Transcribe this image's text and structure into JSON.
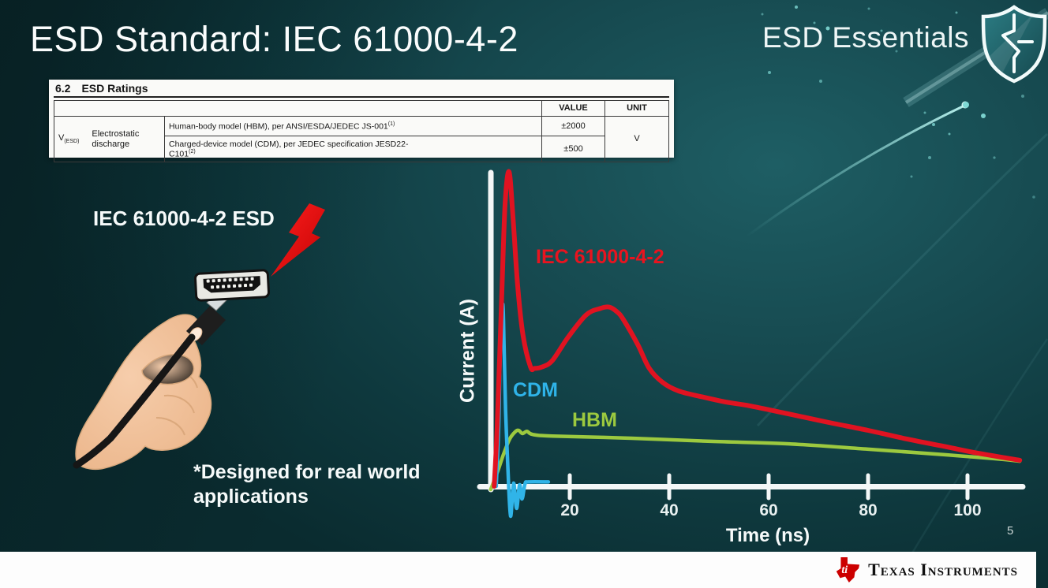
{
  "slide": {
    "title": "ESD Standard: IEC 61000-4-2",
    "brand": "ESD Essentials",
    "page_number": "5",
    "illustration_label": "IEC 61000-4-2 ESD",
    "footnote": "*Designed for real world\napplications"
  },
  "ratings_table": {
    "section": "6.2",
    "heading": "ESD Ratings",
    "col_value": "VALUE",
    "col_unit": "UNIT",
    "param_symbol": "V",
    "param_symbol_sub": "(ESD)",
    "param_name": "Electrostatic discharge",
    "rows": [
      {
        "description": "Human-body model (HBM), per ANSI/ESDA/JEDEC JS-001",
        "sup": "(1)",
        "value": "±2000"
      },
      {
        "description": "Charged-device model (CDM), per JEDEC specification JESD22-",
        "description2": "C101",
        "sup": "(2)",
        "value": "±500"
      }
    ],
    "unit": "V"
  },
  "chart_data": {
    "type": "line",
    "xlabel": "Time (ns)",
    "ylabel": "Current (A)",
    "x_ticks": [
      20,
      40,
      60,
      80,
      100
    ],
    "x_range": [
      0,
      112
    ],
    "y_relative_range": [
      -10,
      105
    ],
    "grid": false,
    "legend": "inline-labels",
    "series": [
      {
        "name": "HBM",
        "color": "#9cc93f",
        "width": 4.5,
        "points": [
          [
            4.1,
            -1
          ],
          [
            5.4,
            4.3
          ],
          [
            6.7,
            10.3
          ],
          [
            7.9,
            15
          ],
          [
            9.0,
            17.3
          ],
          [
            9.7,
            17.8
          ],
          [
            10.5,
            16.8
          ],
          [
            11.4,
            17.5
          ],
          [
            12.5,
            16.5
          ],
          [
            16.5,
            16
          ],
          [
            32.4,
            15.3
          ],
          [
            48.3,
            14.3
          ],
          [
            64.1,
            13.5
          ],
          [
            80,
            11.8
          ],
          [
            95.9,
            10
          ],
          [
            105.4,
            8.8
          ],
          [
            110.5,
            8
          ]
        ]
      },
      {
        "name": "CDM",
        "color": "#30b4e8",
        "width": 4.5,
        "points": [
          [
            5.2,
            0
          ],
          [
            5.7,
            19
          ],
          [
            6.0,
            42
          ],
          [
            6.5,
            58
          ],
          [
            6.8,
            44
          ],
          [
            7.1,
            24
          ],
          [
            7.6,
            4
          ],
          [
            8.1,
            -9.5
          ],
          [
            8.7,
            1
          ],
          [
            9.3,
            -7
          ],
          [
            9.9,
            0.5
          ],
          [
            10.4,
            -4
          ],
          [
            11.0,
            0.8
          ],
          [
            11.7,
            1.4
          ],
          [
            15.7,
            1.4
          ]
        ]
      },
      {
        "name": "IEC 61000-4-2",
        "color": "#e01321",
        "width": 6,
        "points": [
          [
            4.8,
            0
          ],
          [
            5.4,
            19
          ],
          [
            6.3,
            60
          ],
          [
            7.0,
            90
          ],
          [
            7.8,
            100
          ],
          [
            8.6,
            85
          ],
          [
            9.5,
            64
          ],
          [
            10.6,
            48
          ],
          [
            12.1,
            38
          ],
          [
            12.9,
            37.5
          ],
          [
            14.5,
            38
          ],
          [
            16.5,
            40
          ],
          [
            19.7,
            47.5
          ],
          [
            23.3,
            54.5
          ],
          [
            26,
            56.5
          ],
          [
            27.9,
            57
          ],
          [
            29.5,
            55.5
          ],
          [
            30.8,
            53
          ],
          [
            33.7,
            45
          ],
          [
            36,
            37.5
          ],
          [
            38.7,
            33
          ],
          [
            41.9,
            30.3
          ],
          [
            46.2,
            28.6
          ],
          [
            51.4,
            26.8
          ],
          [
            56.2,
            25.6
          ],
          [
            63.8,
            23.1
          ],
          [
            72.1,
            20.3
          ],
          [
            80,
            17.8
          ],
          [
            87.9,
            15
          ],
          [
            95.9,
            12.5
          ],
          [
            102.2,
            10.5
          ],
          [
            110.5,
            8.3
          ]
        ]
      }
    ],
    "series_label_colors": {
      "iec": "#e8141f",
      "cdm": "#2fb3e8",
      "hbm": "#9cc93f"
    }
  },
  "background": {
    "stars": [
      [
        1009,
        9,
        2,
        0.8
      ],
      [
        1032,
        29,
        1.5,
        0.6
      ],
      [
        1049,
        36,
        2.5,
        0.9
      ],
      [
        975,
        92,
        2,
        0.7
      ],
      [
        966,
        18,
        1.5,
        0.5
      ],
      [
        1117,
        39,
        1.5,
        0.6
      ],
      [
        1040,
        103,
        2,
        0.6
      ],
      [
        1101,
        11,
        1.5,
        0.5
      ],
      [
        1224,
        133,
        4,
        1
      ],
      [
        1246,
        147,
        3,
        0.95
      ],
      [
        1183,
        158,
        2,
        0.8
      ],
      [
        1172,
        143,
        1.5,
        0.6
      ],
      [
        1203,
        170,
        1.5,
        0.7
      ],
      [
        1178,
        200,
        2,
        0.6
      ],
      [
        1155,
        224,
        1.5,
        0.5
      ],
      [
        1212,
        16,
        1.5,
        0.6
      ],
      [
        1288,
        13,
        2,
        0.6
      ],
      [
        1270,
        36,
        1.5,
        0.5
      ],
      [
        1296,
        122,
        2,
        0.5
      ],
      [
        1136,
        65,
        1.5,
        0.45
      ],
      [
        1260,
        200,
        1.6,
        0.5
      ],
      [
        1310,
        250,
        1.8,
        0.4
      ]
    ],
    "accent_teal": "#7fd8d4",
    "bolt_red": "#e60000"
  },
  "footer": {
    "logo_monogram": "ti",
    "company": "Texas Instruments"
  }
}
